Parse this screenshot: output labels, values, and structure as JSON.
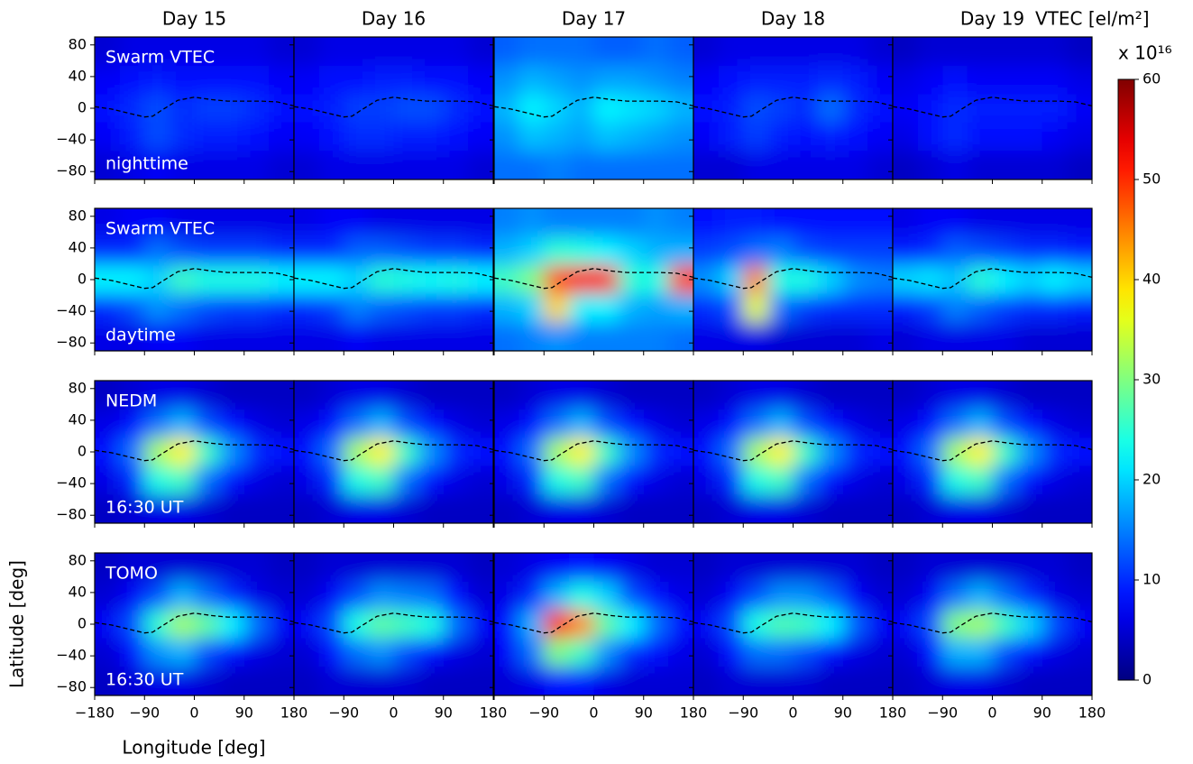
{
  "chart_data": {
    "type": "heatmap",
    "columns": [
      "Day 15",
      "Day 16",
      "Day 17",
      "Day 18",
      "Day 19"
    ],
    "rows": [
      {
        "label": "Swarm VTEC",
        "note": "nighttime"
      },
      {
        "label": "Swarm VTEC",
        "note": "daytime"
      },
      {
        "label": "NEDM",
        "note": "16:30 UT"
      },
      {
        "label": "TOMO",
        "note": "16:30 UT"
      }
    ],
    "x": [
      -157.5,
      -112.5,
      -67.5,
      -22.5,
      22.5,
      67.5,
      112.5,
      157.5
    ],
    "y": [
      72,
      36,
      0,
      -36,
      -72
    ],
    "panels": [
      [
        [
          [
            5,
            6,
            6,
            6,
            6,
            6,
            6,
            5
          ],
          [
            7,
            8,
            9,
            8,
            8,
            8,
            8,
            7
          ],
          [
            8,
            10,
            12,
            10,
            11,
            11,
            10,
            8
          ],
          [
            7,
            9,
            12,
            10,
            9,
            9,
            8,
            7
          ],
          [
            5,
            6,
            7,
            6,
            6,
            6,
            6,
            5
          ]
        ],
        [
          [
            5,
            6,
            6,
            6,
            6,
            6,
            6,
            5
          ],
          [
            7,
            8,
            8,
            9,
            9,
            8,
            8,
            7
          ],
          [
            8,
            9,
            11,
            11,
            12,
            12,
            10,
            8
          ],
          [
            7,
            8,
            10,
            10,
            9,
            9,
            8,
            7
          ],
          [
            5,
            6,
            6,
            6,
            6,
            6,
            6,
            5
          ]
        ],
        [
          [
            13,
            14,
            14,
            14,
            13,
            13,
            14,
            13
          ],
          [
            16,
            18,
            17,
            16,
            17,
            17,
            16,
            15
          ],
          [
            18,
            22,
            20,
            18,
            22,
            21,
            20,
            18
          ],
          [
            16,
            19,
            18,
            17,
            19,
            18,
            17,
            16
          ],
          [
            14,
            14,
            15,
            14,
            14,
            14,
            14,
            14
          ]
        ],
        [
          [
            5,
            6,
            6,
            6,
            6,
            6,
            6,
            5
          ],
          [
            7,
            8,
            9,
            9,
            9,
            10,
            9,
            7
          ],
          [
            8,
            9,
            12,
            11,
            10,
            14,
            10,
            8
          ],
          [
            7,
            9,
            11,
            9,
            8,
            9,
            8,
            7
          ],
          [
            5,
            5,
            6,
            6,
            6,
            6,
            6,
            5
          ]
        ],
        [
          [
            4,
            5,
            5,
            5,
            5,
            5,
            5,
            4
          ],
          [
            6,
            7,
            8,
            7,
            7,
            7,
            7,
            6
          ],
          [
            7,
            8,
            10,
            9,
            9,
            9,
            9,
            7
          ],
          [
            6,
            8,
            10,
            8,
            8,
            8,
            7,
            6
          ],
          [
            4,
            5,
            6,
            5,
            5,
            5,
            5,
            4
          ]
        ]
      ],
      [
        [
          [
            6,
            7,
            7,
            6,
            6,
            6,
            6,
            6
          ],
          [
            10,
            10,
            14,
            12,
            11,
            11,
            11,
            10
          ],
          [
            22,
            22,
            20,
            26,
            24,
            24,
            24,
            22
          ],
          [
            10,
            12,
            16,
            14,
            12,
            11,
            11,
            10
          ],
          [
            6,
            6,
            7,
            7,
            6,
            6,
            6,
            6
          ]
        ],
        [
          [
            6,
            7,
            7,
            6,
            6,
            6,
            6,
            6
          ],
          [
            10,
            10,
            13,
            13,
            12,
            11,
            11,
            10
          ],
          [
            22,
            22,
            20,
            25,
            24,
            23,
            24,
            22
          ],
          [
            10,
            11,
            15,
            13,
            12,
            11,
            11,
            10
          ],
          [
            6,
            6,
            7,
            6,
            6,
            6,
            6,
            6
          ]
        ],
        [
          [
            15,
            16,
            15,
            15,
            15,
            15,
            16,
            15
          ],
          [
            18,
            20,
            25,
            24,
            22,
            20,
            18,
            18
          ],
          [
            26,
            30,
            48,
            52,
            50,
            25,
            24,
            48
          ],
          [
            18,
            20,
            40,
            22,
            22,
            18,
            17,
            18
          ],
          [
            14,
            15,
            16,
            15,
            15,
            15,
            15,
            14
          ]
        ],
        [
          [
            8,
            9,
            9,
            8,
            8,
            8,
            8,
            8
          ],
          [
            11,
            12,
            14,
            15,
            12,
            11,
            11,
            11
          ],
          [
            16,
            20,
            45,
            24,
            24,
            20,
            16,
            15
          ],
          [
            10,
            12,
            36,
            14,
            11,
            10,
            10,
            10
          ],
          [
            6,
            6,
            6,
            5,
            5,
            5,
            5,
            6
          ]
        ],
        [
          [
            6,
            7,
            7,
            6,
            6,
            6,
            6,
            6
          ],
          [
            9,
            10,
            13,
            12,
            11,
            10,
            10,
            9
          ],
          [
            20,
            21,
            19,
            25,
            22,
            20,
            22,
            20
          ],
          [
            9,
            11,
            15,
            13,
            11,
            10,
            10,
            9
          ],
          [
            5,
            6,
            6,
            6,
            6,
            5,
            5,
            5
          ]
        ]
      ],
      [
        [
          [
            4,
            5,
            6,
            6,
            5,
            4,
            4,
            4
          ],
          [
            6,
            8,
            14,
            18,
            12,
            8,
            6,
            5
          ],
          [
            8,
            14,
            32,
            38,
            26,
            16,
            10,
            8
          ],
          [
            6,
            10,
            24,
            26,
            14,
            8,
            6,
            5
          ],
          [
            4,
            5,
            6,
            6,
            5,
            4,
            4,
            4
          ]
        ],
        [
          [
            4,
            5,
            6,
            6,
            5,
            4,
            4,
            4
          ],
          [
            6,
            8,
            14,
            18,
            12,
            8,
            6,
            5
          ],
          [
            8,
            14,
            32,
            38,
            26,
            16,
            10,
            8
          ],
          [
            6,
            10,
            24,
            26,
            14,
            8,
            6,
            5
          ],
          [
            4,
            5,
            6,
            6,
            5,
            4,
            4,
            4
          ]
        ],
        [
          [
            4,
            5,
            6,
            6,
            5,
            4,
            4,
            4
          ],
          [
            6,
            8,
            14,
            18,
            12,
            8,
            6,
            5
          ],
          [
            8,
            14,
            32,
            38,
            26,
            16,
            10,
            8
          ],
          [
            6,
            10,
            24,
            26,
            14,
            8,
            6,
            5
          ],
          [
            4,
            5,
            6,
            6,
            5,
            4,
            4,
            4
          ]
        ],
        [
          [
            4,
            5,
            6,
            6,
            5,
            4,
            4,
            4
          ],
          [
            6,
            8,
            14,
            18,
            12,
            8,
            6,
            5
          ],
          [
            8,
            14,
            32,
            38,
            26,
            16,
            10,
            8
          ],
          [
            6,
            10,
            24,
            26,
            14,
            8,
            6,
            5
          ],
          [
            4,
            5,
            6,
            6,
            5,
            4,
            4,
            4
          ]
        ],
        [
          [
            4,
            5,
            6,
            6,
            5,
            4,
            4,
            4
          ],
          [
            6,
            8,
            14,
            18,
            12,
            8,
            6,
            5
          ],
          [
            8,
            14,
            32,
            38,
            26,
            16,
            10,
            8
          ],
          [
            6,
            10,
            24,
            26,
            14,
            8,
            6,
            5
          ],
          [
            4,
            5,
            6,
            6,
            5,
            4,
            4,
            4
          ]
        ]
      ],
      [
        [
          [
            4,
            5,
            5,
            5,
            5,
            5,
            5,
            4
          ],
          [
            5,
            7,
            12,
            18,
            14,
            10,
            6,
            5
          ],
          [
            7,
            12,
            25,
            32,
            28,
            22,
            14,
            7
          ],
          [
            5,
            8,
            16,
            18,
            12,
            8,
            6,
            5
          ],
          [
            4,
            5,
            6,
            6,
            5,
            4,
            4,
            4
          ]
        ],
        [
          [
            4,
            5,
            5,
            5,
            5,
            5,
            5,
            4
          ],
          [
            5,
            7,
            12,
            16,
            15,
            14,
            8,
            5
          ],
          [
            7,
            12,
            24,
            28,
            26,
            24,
            14,
            7
          ],
          [
            5,
            8,
            14,
            16,
            12,
            8,
            6,
            5
          ],
          [
            4,
            5,
            5,
            5,
            5,
            4,
            4,
            4
          ]
        ],
        [
          [
            5,
            6,
            7,
            8,
            7,
            6,
            5,
            5
          ],
          [
            6,
            10,
            18,
            24,
            20,
            12,
            8,
            6
          ],
          [
            8,
            18,
            50,
            44,
            28,
            22,
            14,
            8
          ],
          [
            7,
            14,
            30,
            26,
            16,
            10,
            8,
            6
          ],
          [
            5,
            6,
            8,
            8,
            6,
            5,
            5,
            5
          ]
        ],
        [
          [
            4,
            5,
            5,
            5,
            5,
            5,
            5,
            4
          ],
          [
            5,
            7,
            12,
            16,
            16,
            13,
            7,
            5
          ],
          [
            7,
            12,
            24,
            27,
            26,
            22,
            13,
            7
          ],
          [
            5,
            8,
            14,
            14,
            12,
            8,
            6,
            5
          ],
          [
            4,
            5,
            5,
            5,
            5,
            4,
            4,
            4
          ]
        ],
        [
          [
            4,
            5,
            5,
            5,
            5,
            5,
            5,
            4
          ],
          [
            5,
            7,
            14,
            18,
            14,
            10,
            6,
            5
          ],
          [
            7,
            12,
            30,
            32,
            26,
            20,
            12,
            7
          ],
          [
            5,
            8,
            18,
            18,
            12,
            8,
            6,
            5
          ],
          [
            4,
            5,
            6,
            6,
            5,
            4,
            4,
            4
          ]
        ]
      ]
    ],
    "xlim": [
      -180,
      180
    ],
    "ylim": [
      -90,
      90
    ],
    "xticks": [
      {
        "value": -180,
        "label": "−180"
      },
      {
        "value": -90,
        "label": "−90"
      },
      0,
      90,
      180
    ],
    "yticks": [
      80,
      40,
      0,
      {
        "value": -40,
        "label": "−40"
      },
      {
        "value": -80,
        "label": "−80"
      }
    ],
    "xlabel": "Longitude [deg]",
    "ylabel": "Latitude [deg]",
    "equator": {
      "x": [
        -180,
        -150,
        -120,
        -90,
        -75,
        -60,
        -30,
        0,
        30,
        60,
        90,
        120,
        150,
        180
      ],
      "y": [
        2,
        -1,
        -6,
        -11,
        -10,
        -3,
        10,
        14,
        11,
        9,
        9,
        9,
        8,
        3
      ],
      "color": "#000000",
      "style": "dashed"
    },
    "colorbar": {
      "label": "VTEC [el/m²]",
      "scale_label": "x 10¹⁶",
      "colormap": "jet",
      "clim": [
        0,
        60
      ],
      "ticks": [
        0,
        10,
        20,
        30,
        40,
        50,
        60
      ]
    }
  }
}
